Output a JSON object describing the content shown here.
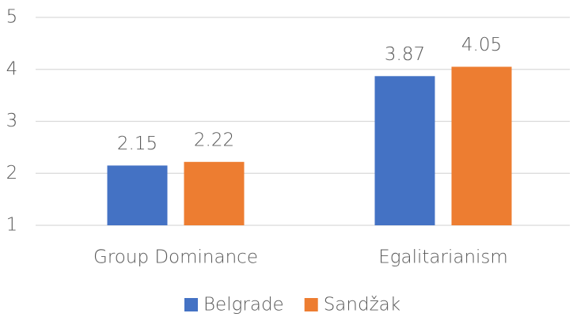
{
  "chart_data": {
    "type": "bar",
    "categories": [
      "Group Dominance",
      "Egalitarianism"
    ],
    "series": [
      {
        "name": "Belgrade",
        "color": "#4472c4",
        "values": [
          2.15,
          3.87
        ]
      },
      {
        "name": "Sandžak",
        "color": "#ed7d31",
        "values": [
          2.22,
          4.05
        ]
      }
    ],
    "ylim": [
      1,
      5
    ],
    "yticks": [
      1,
      2,
      3,
      4,
      5
    ],
    "grid": true,
    "legend": "bottom"
  }
}
